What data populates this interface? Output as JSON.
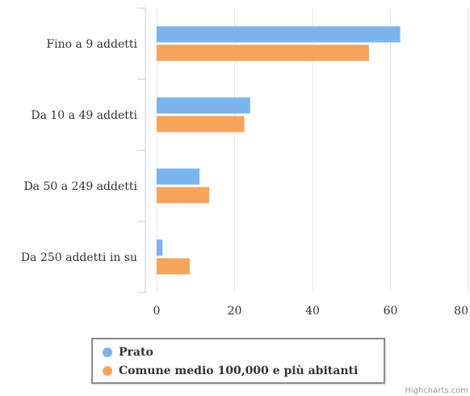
{
  "chart_data": {
    "type": "bar",
    "orientation": "horizontal",
    "categories": [
      "Fino a 9 addetti",
      "Da 10 a 49 addetti",
      "Da 50 a 249 addetti",
      "Da 250 addetti in su"
    ],
    "series": [
      {
        "name": "Prato",
        "color": "#7cb5ec",
        "values": [
          62.5,
          24,
          11,
          1.5
        ]
      },
      {
        "name": "Comune medio 100,000 e più abitanti",
        "color": "#f7a35c",
        "values": [
          54.5,
          22.5,
          13.5,
          8.5
        ]
      }
    ],
    "xlim": [
      0,
      80
    ],
    "xticks": [
      "0",
      "20",
      "40",
      "60",
      "80"
    ],
    "grid": true,
    "legend_position": "bottom-center"
  },
  "credits": "Highcharts.com"
}
